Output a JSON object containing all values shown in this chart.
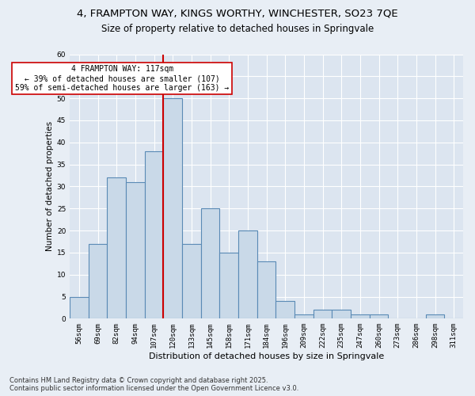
{
  "title_line1": "4, FRAMPTON WAY, KINGS WORTHY, WINCHESTER, SO23 7QE",
  "title_line2": "Size of property relative to detached houses in Springvale",
  "xlabel": "Distribution of detached houses by size in Springvale",
  "ylabel": "Number of detached properties",
  "categories": [
    "56sqm",
    "69sqm",
    "82sqm",
    "94sqm",
    "107sqm",
    "120sqm",
    "133sqm",
    "145sqm",
    "158sqm",
    "171sqm",
    "184sqm",
    "196sqm",
    "209sqm",
    "222sqm",
    "235sqm",
    "247sqm",
    "260sqm",
    "273sqm",
    "286sqm",
    "298sqm",
    "311sqm"
  ],
  "bar_heights": [
    5,
    17,
    32,
    31,
    38,
    50,
    17,
    25,
    15,
    20,
    13,
    4,
    1,
    2,
    2,
    1,
    1,
    0,
    0,
    1,
    0
  ],
  "bar_color": "#c9d9e8",
  "bar_edge_color": "#5a8ab5",
  "bar_edge_width": 0.8,
  "vline_x_index": 5,
  "vline_color": "#cc0000",
  "property_size": 117,
  "annotation_line1": "4 FRAMPTON WAY: 117sqm",
  "annotation_line2": "← 39% of detached houses are smaller (107)",
  "annotation_line3": "59% of semi-detached houses are larger (163) →",
  "annotation_box_color": "#ffffff",
  "annotation_border_color": "#cc0000",
  "ylim": [
    0,
    60
  ],
  "yticks": [
    0,
    5,
    10,
    15,
    20,
    25,
    30,
    35,
    40,
    45,
    50,
    55,
    60
  ],
  "bg_color": "#e8eef5",
  "plot_bg_color": "#dce5f0",
  "footer_line1": "Contains HM Land Registry data © Crown copyright and database right 2025.",
  "footer_line2": "Contains public sector information licensed under the Open Government Licence v3.0.",
  "title_fontsize": 9.5,
  "subtitle_fontsize": 8.5,
  "xlabel_fontsize": 8,
  "ylabel_fontsize": 7.5,
  "tick_fontsize": 6.5,
  "annotation_fontsize": 7,
  "footer_fontsize": 6
}
